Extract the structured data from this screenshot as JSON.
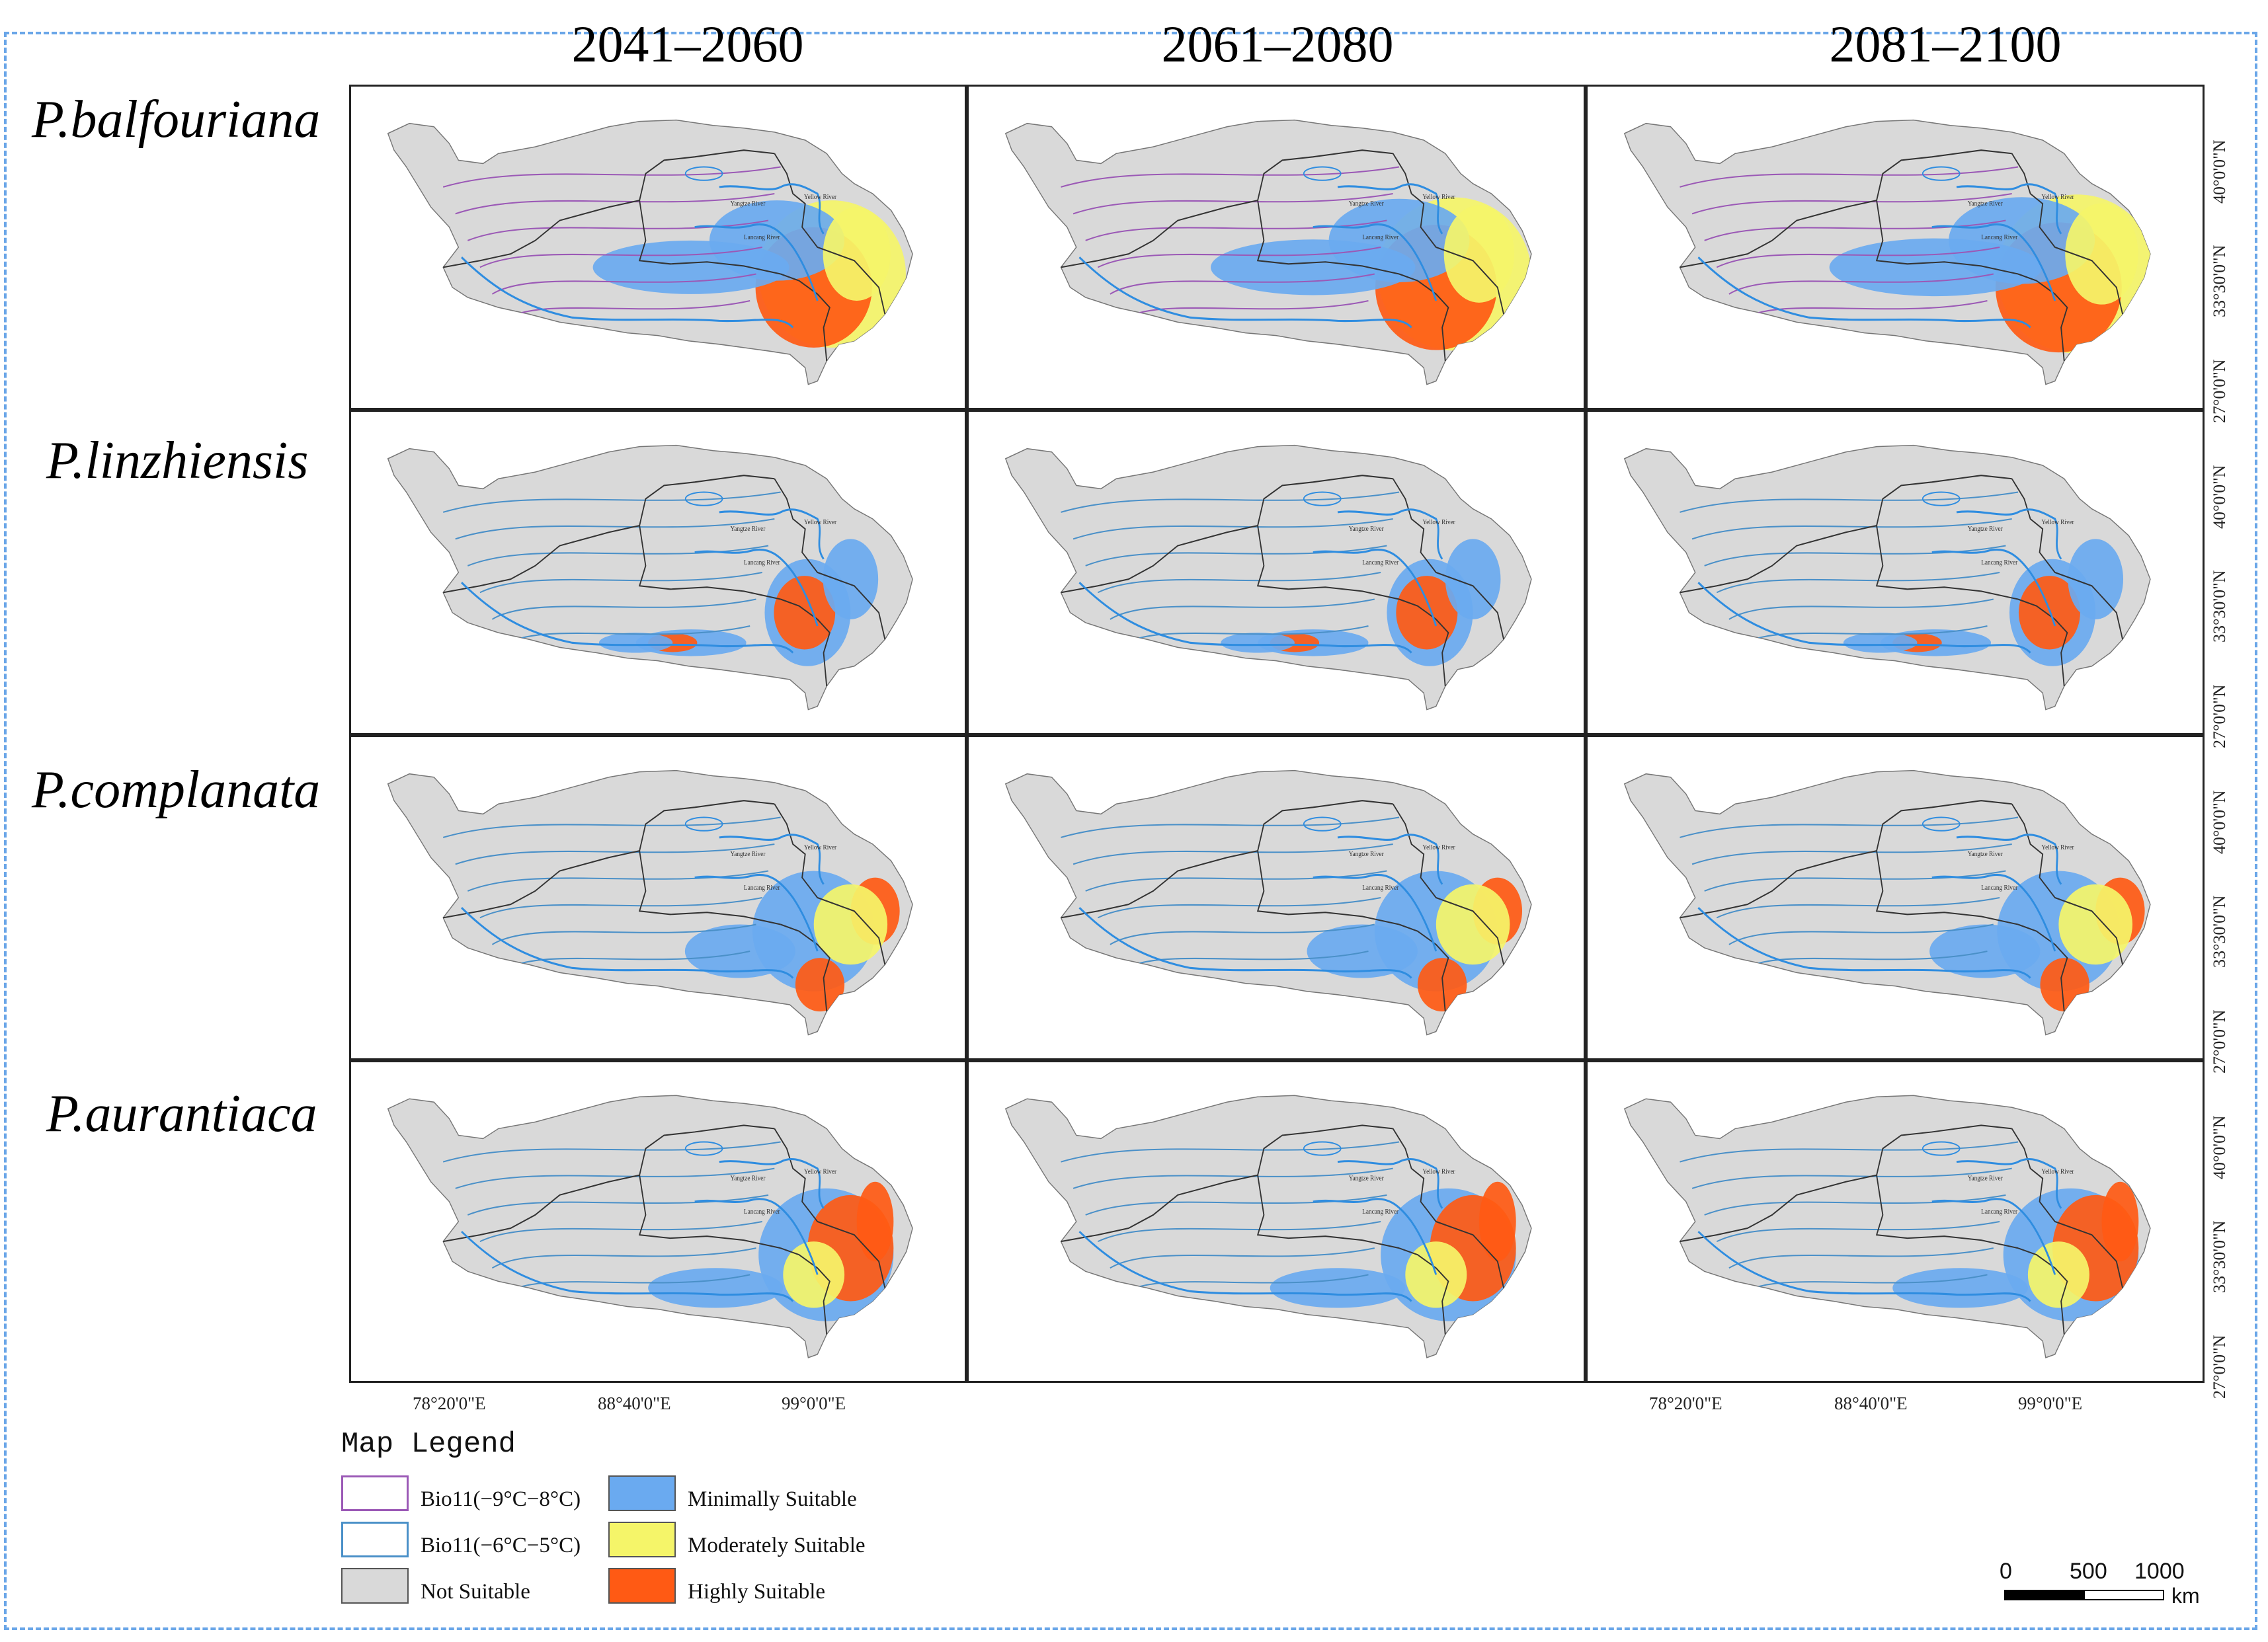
{
  "periods": [
    "2041–2060",
    "2061–2080",
    "2081–2100"
  ],
  "species": [
    "P.balfouriana",
    "P.linzhiensis",
    "P.complanata",
    "P.aurantiaca"
  ],
  "latitude_labels": [
    "40°0'0\"N",
    "33°30'0\"N",
    "27°0'0\"N"
  ],
  "longitude_labels": [
    "78°20'0\"E",
    "88°40'0\"E",
    "99°0'0\"E"
  ],
  "river_labels": [
    "Yangtze River",
    "Yellow River",
    "Lancang River"
  ],
  "legend": {
    "title": "Map Legend",
    "items": [
      {
        "label": "Bio11(−9°C−8°C)",
        "kind": "outline",
        "color": "#9b59b6"
      },
      {
        "label": "Bio11(−6°C−5°C)",
        "kind": "outline",
        "color": "#4a90c8"
      },
      {
        "label": "Not Suitable",
        "kind": "fill",
        "color": "#d9d9d9"
      },
      {
        "label": "Minimally Suitable",
        "kind": "fill",
        "color": "#6aaaf0"
      },
      {
        "label": "Moderately Suitable",
        "kind": "fill",
        "color": "#f5f569"
      },
      {
        "label": "Highly Suitable",
        "kind": "fill",
        "color": "#ff5a14"
      }
    ]
  },
  "scale_bar": {
    "ticks": [
      "0",
      "500",
      "1000"
    ],
    "unit": "km"
  },
  "colors": {
    "not_suitable": "#d9d9d9",
    "minimally": "#6aaaf0",
    "moderately": "#f5f569",
    "highly": "#ff5a14",
    "bio11_cold": "#9b59b6",
    "bio11_warm": "#4a90c8",
    "river": "#2f8de0",
    "border": "#333333"
  }
}
